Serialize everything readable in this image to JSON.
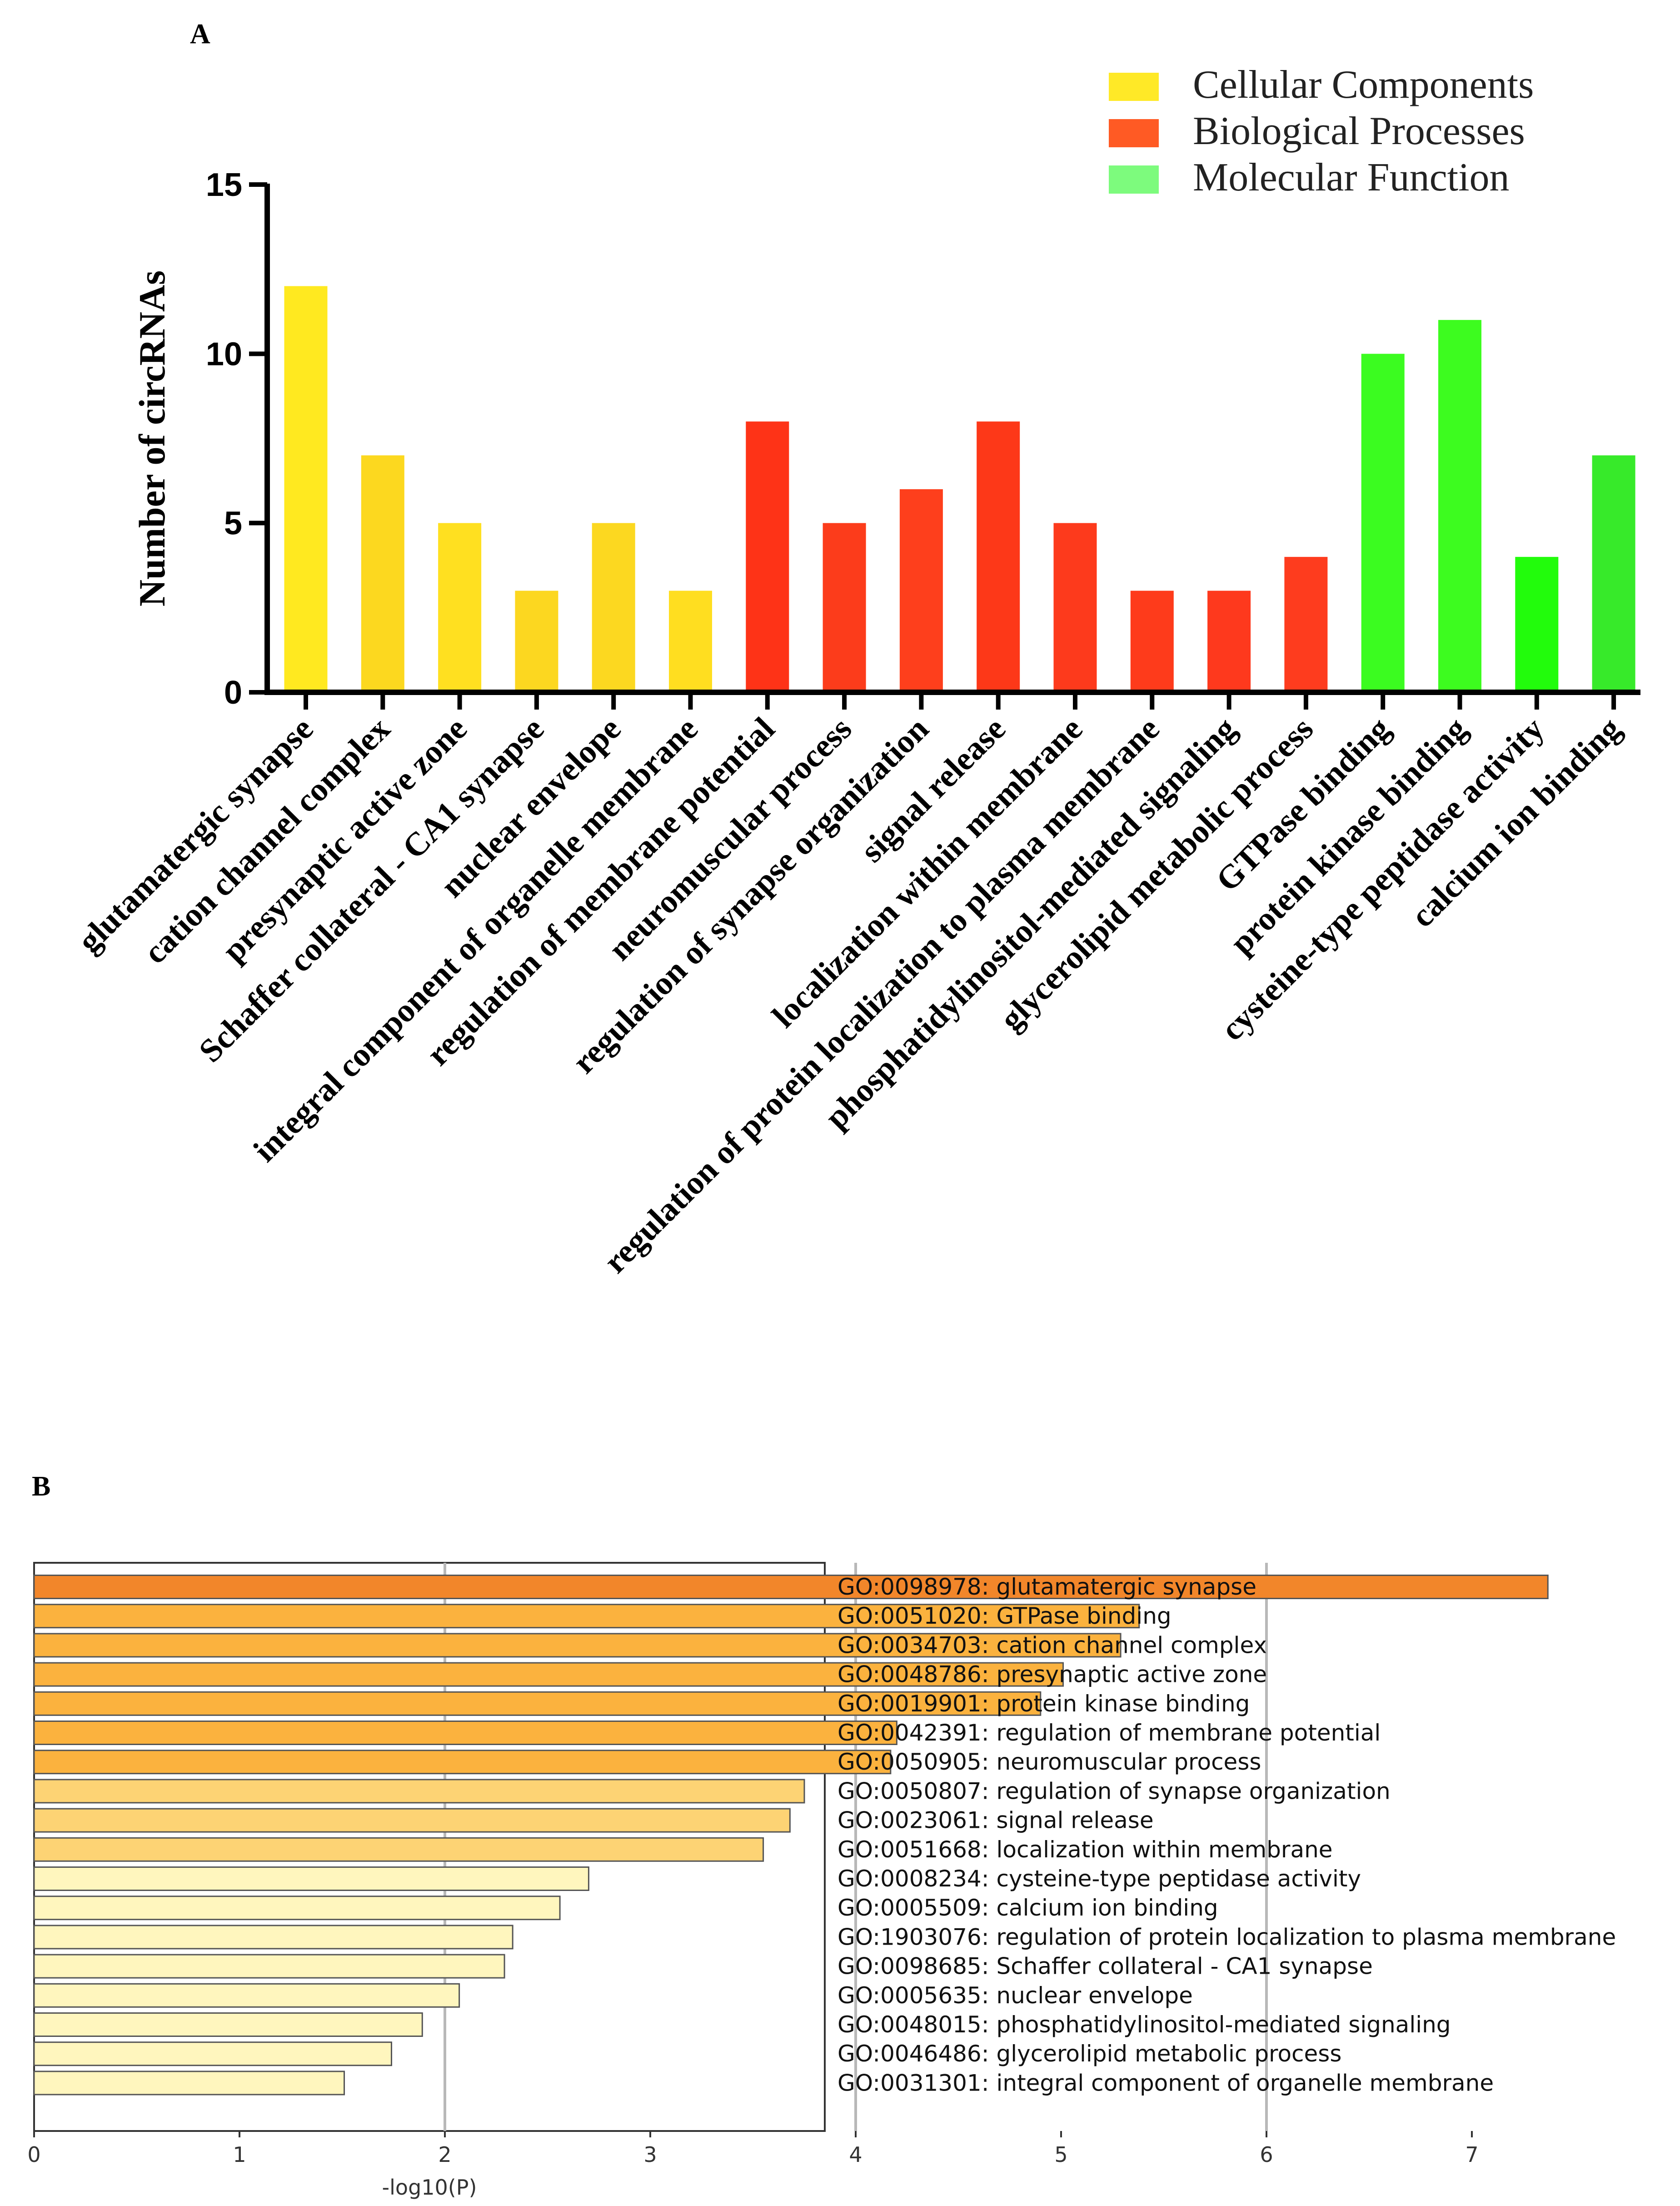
{
  "panel_a_label": "A",
  "panel_b_label": "B",
  "chart_data": [
    {
      "type": "bar",
      "panel": "A",
      "ylabel": "Number of circRNAs",
      "ylim": [
        0,
        15
      ],
      "yticks": [
        0,
        5,
        10,
        15
      ],
      "legend": [
        {
          "label": "Cellular Components",
          "color": "#ffe927"
        },
        {
          "label": "Biological Processes",
          "color": "#ff5a24"
        },
        {
          "label": "Molecular Function",
          "color": "#7dfb7d"
        }
      ],
      "categories": [
        "glutamatergic synapse",
        "cation channel complex",
        "presynaptic active zone",
        "Schaffer collateral - CA1 synapse",
        "nuclear envelope",
        "integral component of organelle membrane",
        "regulation of membrane potential",
        "neuromuscular process",
        "regulation of synapse organization",
        "signal release",
        "localization within membrane",
        "regulation of protein localization to plasma membrane",
        "phosphatidylinositol-mediated signaling",
        "glycerolipid metabolic process",
        "GTPase binding",
        "protein kinase binding",
        "cysteine-type peptidase activity",
        "calcium ion binding"
      ],
      "values": [
        12,
        7,
        5,
        3,
        5,
        3,
        8,
        5,
        6,
        8,
        5,
        3,
        3,
        4,
        10,
        11,
        4,
        7
      ],
      "colors": [
        "#ffe920",
        "#fcd81f",
        "#ffe020",
        "#fcd720",
        "#fcd820",
        "#ffde20",
        "#fe3317",
        "#fc3c1b",
        "#fe3f1c",
        "#fd3818",
        "#fd3a1c",
        "#fe3b1b",
        "#fe391d",
        "#fe3c1e",
        "#3bfc20",
        "#3dfc1f",
        "#22fc0c",
        "#37ea2a"
      ]
    },
    {
      "type": "bar",
      "orientation": "horizontal",
      "panel": "B",
      "xlabel": "-log10(P)",
      "xlim": [
        0,
        7.6
      ],
      "xticks": [
        0,
        1,
        2,
        3,
        4,
        5,
        6,
        7
      ],
      "gridlines_at": [
        2,
        4,
        6
      ],
      "categories": [
        "GO:0098978: glutamatergic synapse",
        "GO:0051020: GTPase binding",
        "GO:0034703: cation channel complex",
        "GO:0048786: presynaptic active zone",
        "GO:0019901: protein kinase binding",
        "GO:0042391: regulation of membrane potential",
        "GO:0050905: neuromuscular process",
        "GO:0050807: regulation of synapse organization",
        "GO:0023061: signal release",
        "GO:0051668: localization within membrane",
        "GO:0008234: cysteine-type peptidase activity",
        "GO:0005509: calcium ion binding",
        "GO:1903076: regulation of protein localization to plasma membrane",
        "GO:0098685: Schaffer collateral - CA1 synapse",
        "GO:0005635: nuclear envelope",
        "GO:0048015: phosphatidylinositol-mediated signaling",
        "GO:0046486: glycerolipid metabolic process",
        "GO:0031301: integral component of organelle membrane"
      ],
      "values": [
        7.37,
        5.38,
        5.29,
        5.01,
        4.9,
        4.2,
        4.17,
        3.75,
        3.68,
        3.55,
        2.7,
        2.56,
        2.33,
        2.29,
        2.07,
        1.89,
        1.74,
        1.51
      ],
      "colors": [
        "#f2862a",
        "#fbb23e",
        "#fbb23e",
        "#fbb23e",
        "#fbb23e",
        "#fbb23e",
        "#fbb23e",
        "#fdd374",
        "#fdd374",
        "#fdd374",
        "#fff6be",
        "#fff6be",
        "#fff6be",
        "#fff6be",
        "#fff6be",
        "#fff6be",
        "#fff6be",
        "#fff6be"
      ]
    }
  ]
}
